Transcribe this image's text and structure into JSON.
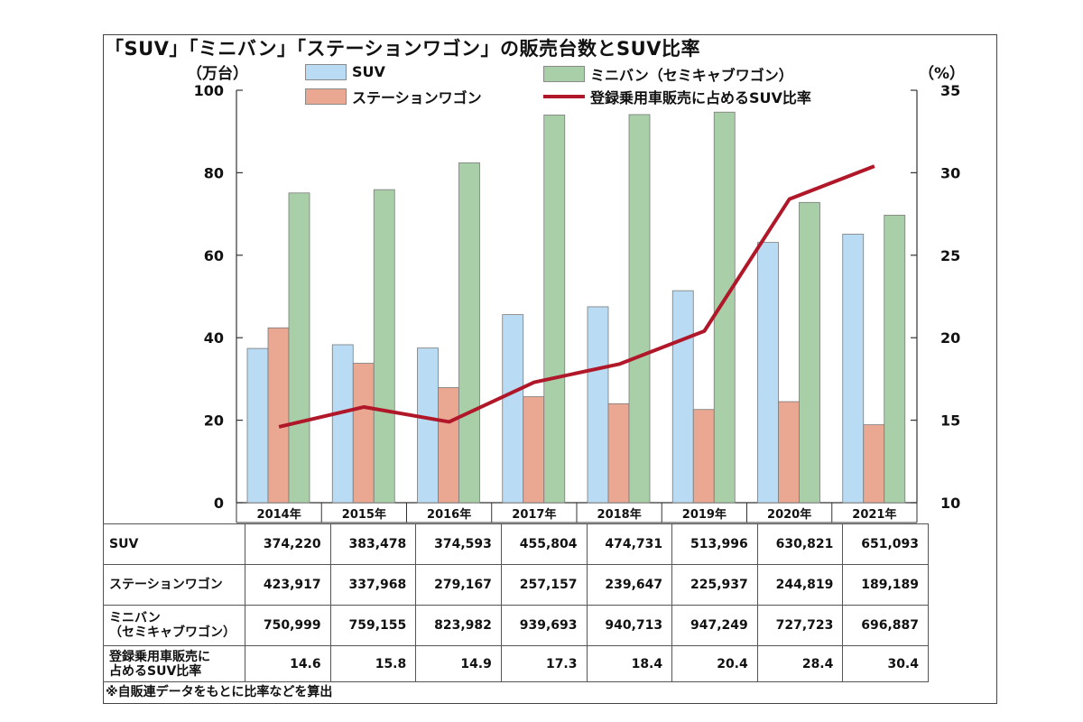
{
  "title": "「SUV」「ミニバン」「ステーションワゴン」の販売台数とSUV比率",
  "left_unit": "（万台）",
  "right_unit": "（%）",
  "legend": {
    "suv": "SUV",
    "minivan": "ミニバン（セミキャブワゴン）",
    "wagon": "ステーションワゴン",
    "ratio": "登録乗用車販売に占めるSUV比率"
  },
  "colors": {
    "suv": "#b9dbf3",
    "minivan": "#a9cfa9",
    "wagon": "#eaa791",
    "ratio": "#b0182a"
  },
  "chart_data": {
    "type": "bar",
    "categories": [
      "2014年",
      "2015年",
      "2016年",
      "2017年",
      "2018年",
      "2019年",
      "2020年",
      "2021年"
    ],
    "series": [
      {
        "name": "SUV",
        "axis": "left",
        "values": [
          37.4,
          38.3,
          37.5,
          45.6,
          47.5,
          51.4,
          63.1,
          65.1
        ]
      },
      {
        "name": "ステーションワゴン",
        "axis": "left",
        "values": [
          42.4,
          33.8,
          27.9,
          25.7,
          24.0,
          22.6,
          24.5,
          18.9
        ]
      },
      {
        "name": "ミニバン（セミキャブワゴン）",
        "axis": "left",
        "values": [
          75.1,
          75.9,
          82.4,
          94.0,
          94.1,
          94.7,
          72.8,
          69.7
        ]
      },
      {
        "name": "登録乗用車販売に占めるSUV比率",
        "type": "line",
        "axis": "right",
        "values": [
          14.6,
          15.8,
          14.9,
          17.3,
          18.4,
          20.4,
          28.4,
          30.4
        ]
      }
    ],
    "y_left": {
      "ylim": [
        0,
        100
      ],
      "ticks": [
        "0",
        "20",
        "40",
        "60",
        "80",
        "100"
      ]
    },
    "y_right": {
      "ylim": [
        10,
        35
      ],
      "ticks": [
        "10",
        "15",
        "20",
        "25",
        "30",
        "35"
      ]
    },
    "grid": false,
    "legend_position": "top"
  },
  "table": {
    "rows": [
      {
        "label": "SUV",
        "values": [
          "374,220",
          "383,478",
          "374,593",
          "455,804",
          "474,731",
          "513,996",
          "630,821",
          "651,093"
        ]
      },
      {
        "label": "ステーションワゴン",
        "values": [
          "423,917",
          "337,968",
          "279,167",
          "257,157",
          "239,647",
          "225,937",
          "244,819",
          "189,189"
        ]
      },
      {
        "label_line1": "ミニバン",
        "label_line2": "（セミキャブワゴン）",
        "values": [
          "750,999",
          "759,155",
          "823,982",
          "939,693",
          "940,713",
          "947,249",
          "727,723",
          "696,887"
        ]
      },
      {
        "label_line1": "登録乗用車販売に",
        "label_line2": "占めるSUV比率",
        "values": [
          "14.6",
          "15.8",
          "14.9",
          "17.3",
          "18.4",
          "20.4",
          "28.4",
          "30.4"
        ]
      }
    ]
  },
  "note": "※自販連データをもとに比率などを算出"
}
